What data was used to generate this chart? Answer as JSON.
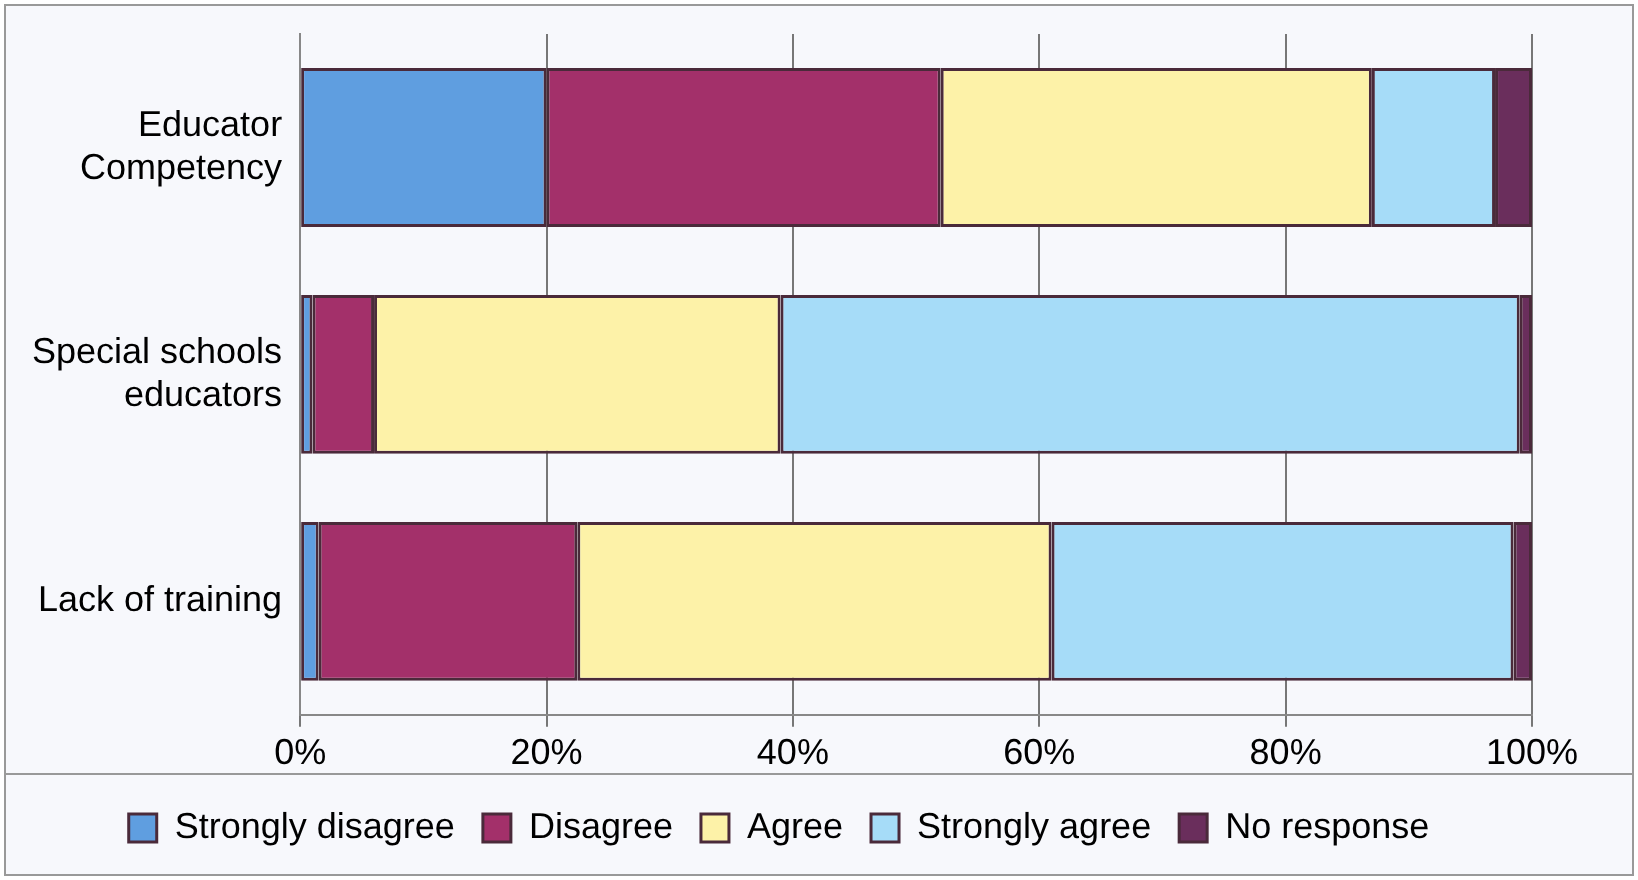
{
  "chart_data": {
    "type": "bar",
    "orientation": "horizontal",
    "stacked": true,
    "categories": [
      "Educator Competency",
      "Special schools educators",
      "Lack of training"
    ],
    "series": [
      {
        "name": "Strongly disagree",
        "color": "#5f9ee0",
        "values": [
          20,
          1,
          1.5
        ]
      },
      {
        "name": "Disagree",
        "color": "#a3306a",
        "values": [
          32,
          5,
          21
        ]
      },
      {
        "name": "Agree",
        "color": "#fdf2a8",
        "values": [
          35,
          33,
          38.5
        ]
      },
      {
        "name": "Strongly agree",
        "color": "#a6dcf8",
        "values": [
          10,
          60,
          37.5
        ]
      },
      {
        "name": "No response",
        "color": "#6a2e5c",
        "values": [
          3,
          1,
          1.5
        ]
      }
    ],
    "xlim": [
      0,
      100
    ],
    "xticks": [
      {
        "value": 0,
        "label": "0%"
      },
      {
        "value": 20,
        "label": "20%"
      },
      {
        "value": 40,
        "label": "40%"
      },
      {
        "value": 60,
        "label": "60%"
      },
      {
        "value": 80,
        "label": "80%"
      },
      {
        "value": 100,
        "label": "100%"
      }
    ],
    "grid": "x",
    "legend": "bottom"
  }
}
